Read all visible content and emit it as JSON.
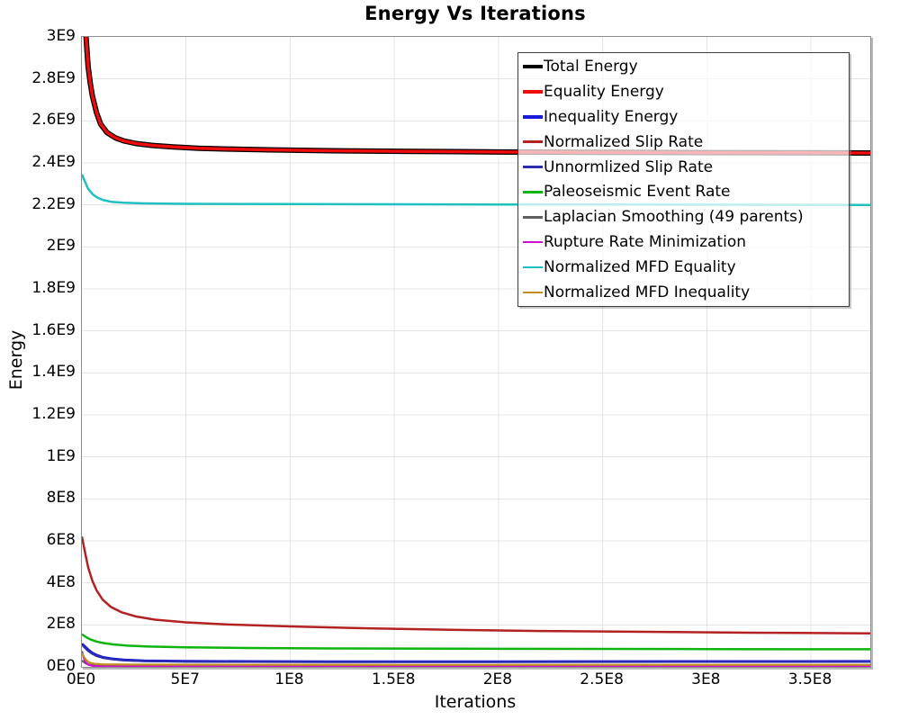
{
  "title": "Energy Vs Iterations",
  "axes": {
    "x_label": "Iterations",
    "y_label": "Energy"
  },
  "chart_data": {
    "type": "line",
    "title": "Energy Vs Iterations",
    "xlabel": "Iterations",
    "ylabel": "Energy",
    "xlim": [
      0,
      378500000.0
    ],
    "ylim": [
      0,
      3000000000.0
    ],
    "grid": true,
    "legend_position": "top-right-inside",
    "legend_background": "rgba(255,255,255,0.70)",
    "x_ticks": {
      "values": [
        0,
        50000000.0,
        100000000.0,
        150000000.0,
        200000000.0,
        250000000.0,
        300000000.0,
        350000000.0
      ],
      "labels": [
        "0E0",
        "5E7",
        "1E8",
        "1.5E8",
        "2E8",
        "2.5E8",
        "3E8",
        "3.5E8"
      ]
    },
    "y_ticks": {
      "values": [
        0,
        200000000.0,
        400000000.0,
        600000000.0,
        800000000.0,
        1000000000.0,
        1200000000.0,
        1400000000.0,
        1600000000.0,
        1800000000.0,
        2000000000.0,
        2200000000.0,
        2400000000.0,
        2600000000.0,
        2800000000.0,
        3000000000.0
      ],
      "labels": [
        "0E0",
        "2E8",
        "4E8",
        "6E8",
        "8E8",
        "1E9",
        "1.2E9",
        "1.4E9",
        "1.6E9",
        "1.8E9",
        "2E9",
        "2.2E9",
        "2.4E9",
        "2.6E9",
        "2.8E9",
        "3E9"
      ]
    },
    "grid_color": "#e4e4e4",
    "series": [
      {
        "name": "Total Energy",
        "color": "#000000",
        "width": 6,
        "points": [
          [
            1200000.0,
            3200000000.0
          ],
          [
            2000000.0,
            3000000000.0
          ],
          [
            3000000.0,
            2860000000.0
          ],
          [
            4000000.0,
            2780000000.0
          ],
          [
            5000000.0,
            2720000000.0
          ],
          [
            7000000.0,
            2640000000.0
          ],
          [
            9000000.0,
            2585000000.0
          ],
          [
            12000000.0,
            2545000000.0
          ],
          [
            16000000.0,
            2520000000.0
          ],
          [
            20000000.0,
            2505000000.0
          ],
          [
            26000000.0,
            2492000000.0
          ],
          [
            34000000.0,
            2483000000.0
          ],
          [
            44000000.0,
            2476000000.0
          ],
          [
            56000000.0,
            2470000000.0
          ],
          [
            70000000.0,
            2466000000.0
          ],
          [
            90000000.0,
            2462000000.0
          ],
          [
            120000000.0,
            2458000000.0
          ],
          [
            160000000.0,
            2455000000.0
          ],
          [
            200000000.0,
            2452000000.0
          ],
          [
            250000000.0,
            2450000000.0
          ],
          [
            300000000.0,
            2449000000.0
          ],
          [
            350000000.0,
            2448000000.0
          ],
          [
            378500000.0,
            2447000000.0
          ]
        ]
      },
      {
        "name": "Equality Energy",
        "color": "#ee0c0c",
        "width": 3.5,
        "points": [
          [
            1200000.0,
            3200000000.0
          ],
          [
            2000000.0,
            3000000000.0
          ],
          [
            3000000.0,
            2860000000.0
          ],
          [
            4000000.0,
            2780000000.0
          ],
          [
            5000000.0,
            2720000000.0
          ],
          [
            7000000.0,
            2640000000.0
          ],
          [
            9000000.0,
            2585000000.0
          ],
          [
            12000000.0,
            2545000000.0
          ],
          [
            16000000.0,
            2520000000.0
          ],
          [
            20000000.0,
            2505000000.0
          ],
          [
            26000000.0,
            2492000000.0
          ],
          [
            34000000.0,
            2483000000.0
          ],
          [
            44000000.0,
            2476000000.0
          ],
          [
            56000000.0,
            2470000000.0
          ],
          [
            70000000.0,
            2466000000.0
          ],
          [
            90000000.0,
            2462000000.0
          ],
          [
            120000000.0,
            2458000000.0
          ],
          [
            160000000.0,
            2455000000.0
          ],
          [
            200000000.0,
            2452000000.0
          ],
          [
            250000000.0,
            2450000000.0
          ],
          [
            300000000.0,
            2449000000.0
          ],
          [
            350000000.0,
            2448000000.0
          ],
          [
            378500000.0,
            2447000000.0
          ]
        ]
      },
      {
        "name": "Inequality Energy",
        "color": "#1a1ad9",
        "width": 3,
        "points": [
          [
            0,
            110000000.0
          ],
          [
            1500000.0,
            96000000.0
          ],
          [
            3000000.0,
            82000000.0
          ],
          [
            5000000.0,
            66000000.0
          ],
          [
            7000000.0,
            56000000.0
          ],
          [
            10000000.0,
            46000000.0
          ],
          [
            14000000.0,
            39000000.0
          ],
          [
            20000000.0,
            33000000.0
          ],
          [
            30000000.0,
            29000000.0
          ],
          [
            50000000.0,
            26500000.0
          ],
          [
            80000000.0,
            25500000.0
          ],
          [
            120000000.0,
            25000000.0
          ],
          [
            200000000.0,
            25000000.0
          ],
          [
            300000000.0,
            25500000.0
          ],
          [
            378500000.0,
            26000000.0
          ]
        ]
      },
      {
        "name": "Normalized Slip Rate",
        "color": "#b22222",
        "width": 2.5,
        "points": [
          [
            0,
            620000000.0
          ],
          [
            1500000.0,
            545000000.0
          ],
          [
            3000000.0,
            475000000.0
          ],
          [
            5000000.0,
            410000000.0
          ],
          [
            7000000.0,
            365000000.0
          ],
          [
            10000000.0,
            320000000.0
          ],
          [
            14000000.0,
            285000000.0
          ],
          [
            19000000.0,
            260000000.0
          ],
          [
            26000000.0,
            240000000.0
          ],
          [
            35000000.0,
            225000000.0
          ],
          [
            50000000.0,
            212000000.0
          ],
          [
            70000000.0,
            202000000.0
          ],
          [
            100000000.0,
            193000000.0
          ],
          [
            140000000.0,
            183000000.0
          ],
          [
            180000000.0,
            176000000.0
          ],
          [
            220000000.0,
            171000000.0
          ],
          [
            270000000.0,
            167000000.0
          ],
          [
            320000000.0,
            163000000.0
          ],
          [
            378500000.0,
            160000000.0
          ]
        ]
      },
      {
        "name": "Unnormlized Slip Rate",
        "color": "#2c2cb0",
        "width": 2.2,
        "points": [
          [
            0,
            105000000.0
          ],
          [
            1500000.0,
            90000000.0
          ],
          [
            3000000.0,
            76000000.0
          ],
          [
            5000000.0,
            62000000.0
          ],
          [
            7000000.0,
            52000000.0
          ],
          [
            10000000.0,
            43000000.0
          ],
          [
            14000000.0,
            37000000.0
          ],
          [
            20000000.0,
            31000000.0
          ],
          [
            30000000.0,
            27500000.0
          ],
          [
            50000000.0,
            25000000.0
          ],
          [
            80000000.0,
            24000000.0
          ],
          [
            120000000.0,
            23800000.0
          ],
          [
            200000000.0,
            24000000.0
          ],
          [
            300000000.0,
            24500000.0
          ],
          [
            378500000.0,
            25000000.0
          ]
        ]
      },
      {
        "name": "Paleoseismic Event Rate",
        "color": "#0fb40f",
        "width": 2.5,
        "points": [
          [
            0,
            155000000.0
          ],
          [
            2000000.0,
            142000000.0
          ],
          [
            4000000.0,
            131000000.0
          ],
          [
            7000000.0,
            121000000.0
          ],
          [
            10000000.0,
            114000000.0
          ],
          [
            15000000.0,
            107000000.0
          ],
          [
            22000000.0,
            101000000.0
          ],
          [
            32000000.0,
            97000000.0
          ],
          [
            50000000.0,
            93000000.0
          ],
          [
            80000000.0,
            90000000.0
          ],
          [
            120000000.0,
            88000000.0
          ],
          [
            200000000.0,
            86000000.0
          ],
          [
            300000000.0,
            85000000.0
          ],
          [
            378500000.0,
            84000000.0
          ]
        ]
      },
      {
        "name": "Laplacian Smoothing (49 parents)",
        "color": "#606060",
        "width": 2.2,
        "points": [
          [
            0,
            30000000.0
          ],
          [
            2000000.0,
            16000000.0
          ],
          [
            4000000.0,
            9000000.0
          ],
          [
            7000000.0,
            6000000.0
          ],
          [
            12000000.0,
            4500000.0
          ],
          [
            30000000.0,
            4000000.0
          ],
          [
            100000000.0,
            3800000.0
          ],
          [
            200000000.0,
            3600000.0
          ],
          [
            378500000.0,
            3500000.0
          ]
        ]
      },
      {
        "name": "Rupture Rate Minimization",
        "color": "#cc11cc",
        "width": 2.2,
        "points": [
          [
            0,
            75000000.0
          ],
          [
            800000.0,
            45000000.0
          ],
          [
            1600000.0,
            24000000.0
          ],
          [
            3000000.0,
            11000000.0
          ],
          [
            5000000.0,
            5000000.0
          ],
          [
            9000000.0,
            2500000.0
          ],
          [
            20000000.0,
            1800000.0
          ],
          [
            100000000.0,
            1500000.0
          ],
          [
            378500000.0,
            1500000.0
          ]
        ]
      },
      {
        "name": "Normalized MFD Equality",
        "color": "#20c0c0",
        "width": 2.5,
        "points": [
          [
            0,
            2345000000.0
          ],
          [
            1500000.0,
            2310000000.0
          ],
          [
            3000000.0,
            2277000000.0
          ],
          [
            5000000.0,
            2252000000.0
          ],
          [
            7000000.0,
            2237000000.0
          ],
          [
            10000000.0,
            2224000000.0
          ],
          [
            14000000.0,
            2215000000.0
          ],
          [
            20000000.0,
            2210000000.0
          ],
          [
            30000000.0,
            2207000000.0
          ],
          [
            50000000.0,
            2205000000.0
          ],
          [
            100000000.0,
            2204000000.0
          ],
          [
            200000000.0,
            2202000000.0
          ],
          [
            300000000.0,
            2201000000.0
          ],
          [
            378500000.0,
            2200000000.0
          ]
        ]
      },
      {
        "name": "Normalized MFD Inequality",
        "color": "#c0901f",
        "width": 2.2,
        "points": [
          [
            0,
            65000000.0
          ],
          [
            1200000.0,
            44000000.0
          ],
          [
            2500000.0,
            28000000.0
          ],
          [
            4000000.0,
            19000000.0
          ],
          [
            6000000.0,
            15000000.0
          ],
          [
            10000000.0,
            12500000.0
          ],
          [
            20000000.0,
            11200000.0
          ],
          [
            50000000.0,
            10500000.0
          ],
          [
            150000000.0,
            10000000.0
          ],
          [
            378500000.0,
            10000000.0
          ]
        ]
      }
    ]
  }
}
